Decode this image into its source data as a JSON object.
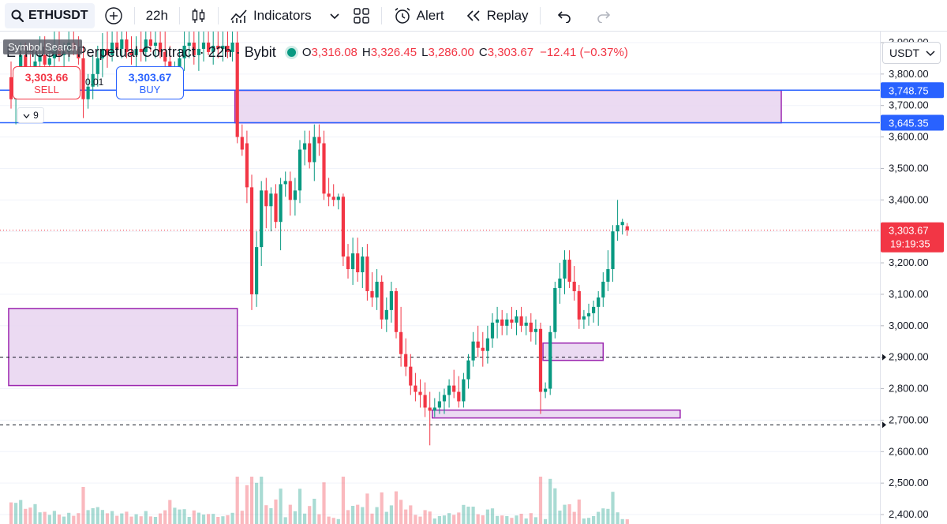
{
  "toolbar": {
    "symbol": "ETHUSDT",
    "interval": "22h",
    "indicators_label": "Indicators",
    "alert_label": "Alert",
    "replay_label": "Replay"
  },
  "tooltip": {
    "symbol_search": "Symbol Search"
  },
  "legend": {
    "title": "ETHUSDT Perpetual Contract · 22h · Bybit",
    "open_key": "O",
    "open": "3,316.08",
    "high_key": "H",
    "high": "3,326.45",
    "low_key": "L",
    "low": "3,286.00",
    "close_key": "C",
    "close": "3,303.67",
    "change": "−12.41 (−0.37%)"
  },
  "trade": {
    "sell_price": "3,303.66",
    "sell_label": "SELL",
    "buy_price": "3,303.67",
    "buy_label": "BUY",
    "spread": "0.01"
  },
  "indicator_toggle": {
    "count": "9"
  },
  "currency": "USDT",
  "colors": {
    "up": "#089981",
    "down": "#f23645",
    "zone_fill": "#e8d4f0",
    "zone_border": "#9c27b0",
    "hline": "#2962ff",
    "grid": "#f0f3fa"
  },
  "axis": {
    "min": 2370,
    "max": 3935,
    "ticks": [
      3900,
      3800,
      3700,
      3600,
      3500,
      3400,
      3300,
      3200,
      3100,
      3000,
      2900,
      2800,
      2700,
      2600,
      2500,
      2400
    ],
    "tick_labels": [
      "3,900.00",
      "3,800.00",
      "3,700.00",
      "3,600.00",
      "3,500.00",
      "3,400.00",
      "3,300.00",
      "3,200.00",
      "3,100.00",
      "3,000.00",
      "2,900.00",
      "2,800.00",
      "2,700.00",
      "2,600.00",
      "2,500.00",
      "2,400.00"
    ],
    "level_labels": [
      {
        "value": 3748.75,
        "text": "3,748.75"
      },
      {
        "value": 3645.35,
        "text": "3,645.35"
      }
    ],
    "last_price": {
      "value": 3303.67,
      "text": "3,303.67",
      "countdown": "19:19:35"
    }
  },
  "chart_data": {
    "type": "candlestick",
    "horizontal_lines": [
      3748.75,
      3645.35
    ],
    "dashed_lines": [
      2900,
      2685
    ],
    "zones": [
      {
        "from_bar": 47,
        "to_bar": 160,
        "low": 3645,
        "high": 3748
      },
      {
        "from_bar": 0,
        "to_bar": 47,
        "low": 2810,
        "high": 3055
      },
      {
        "from_bar": 111,
        "to_bar": 123,
        "low": 2890,
        "high": 2945
      },
      {
        "from_bar": 88,
        "to_bar": 139,
        "low": 2707,
        "high": 2732
      }
    ],
    "candles": [
      [
        3790,
        3840,
        3690,
        3720
      ],
      [
        3720,
        3810,
        3640,
        3780
      ],
      [
        3780,
        3900,
        3740,
        3860
      ],
      [
        3860,
        3900,
        3770,
        3820
      ],
      [
        3820,
        3890,
        3740,
        3780
      ],
      [
        3780,
        3870,
        3720,
        3840
      ],
      [
        3840,
        3920,
        3790,
        3860
      ],
      [
        3860,
        3920,
        3810,
        3830
      ],
      [
        3830,
        3880,
        3790,
        3850
      ],
      [
        3850,
        3935,
        3810,
        3880
      ],
      [
        3880,
        3935,
        3840,
        3860
      ],
      [
        3860,
        3900,
        3810,
        3870
      ],
      [
        3870,
        3935,
        3840,
        3900
      ],
      [
        3900,
        3935,
        3860,
        3880
      ],
      [
        3880,
        3920,
        3830,
        3850
      ],
      [
        3850,
        3890,
        3660,
        3720
      ],
      [
        3720,
        3800,
        3690,
        3760
      ],
      [
        3760,
        3860,
        3720,
        3800
      ],
      [
        3800,
        3890,
        3760,
        3850
      ],
      [
        3850,
        3930,
        3790,
        3880
      ],
      [
        3880,
        3935,
        3820,
        3860
      ],
      [
        3860,
        3935,
        3840,
        3900
      ],
      [
        3900,
        3935,
        3860,
        3880
      ],
      [
        3880,
        3935,
        3850,
        3910
      ],
      [
        3910,
        3935,
        3850,
        3870
      ],
      [
        3870,
        3920,
        3830,
        3860
      ],
      [
        3860,
        3920,
        3820,
        3880
      ],
      [
        3880,
        3935,
        3840,
        3870
      ],
      [
        3870,
        3935,
        3840,
        3910
      ],
      [
        3910,
        3935,
        3870,
        3890
      ],
      [
        3890,
        3935,
        3850,
        3900
      ],
      [
        3900,
        3935,
        3850,
        3870
      ],
      [
        3870,
        3935,
        3800,
        3840
      ],
      [
        3840,
        3890,
        3730,
        3760
      ],
      [
        3760,
        3840,
        3720,
        3810
      ],
      [
        3810,
        3880,
        3760,
        3850
      ],
      [
        3850,
        3935,
        3810,
        3890
      ],
      [
        3890,
        3935,
        3850,
        3900
      ],
      [
        3900,
        3935,
        3830,
        3860
      ],
      [
        3860,
        3935,
        3810,
        3880
      ],
      [
        3880,
        3935,
        3840,
        3900
      ],
      [
        3900,
        3935,
        3860,
        3870
      ],
      [
        3870,
        3935,
        3830,
        3890
      ],
      [
        3890,
        3935,
        3850,
        3880
      ],
      [
        3880,
        3935,
        3840,
        3890
      ],
      [
        3890,
        3935,
        3850,
        3870
      ],
      [
        3870,
        3935,
        3840,
        3900
      ],
      [
        3900,
        3935,
        3580,
        3600
      ],
      [
        3600,
        3640,
        3540,
        3560
      ],
      [
        3580,
        3620,
        3390,
        3440
      ],
      [
        3440,
        3480,
        3050,
        3100
      ],
      [
        3100,
        3300,
        3060,
        3250
      ],
      [
        3250,
        3460,
        3190,
        3430
      ],
      [
        3430,
        3470,
        3310,
        3380
      ],
      [
        3380,
        3440,
        3300,
        3420
      ],
      [
        3420,
        3450,
        3310,
        3330
      ],
      [
        3330,
        3470,
        3240,
        3450
      ],
      [
        3450,
        3490,
        3410,
        3460
      ],
      [
        3460,
        3490,
        3350,
        3400
      ],
      [
        3400,
        3470,
        3350,
        3430
      ],
      [
        3430,
        3590,
        3390,
        3560
      ],
      [
        3560,
        3620,
        3510,
        3580
      ],
      [
        3580,
        3620,
        3500,
        3520
      ],
      [
        3520,
        3640,
        3460,
        3600
      ],
      [
        3600,
        3640,
        3540,
        3580
      ],
      [
        3580,
        3620,
        3400,
        3420
      ],
      [
        3420,
        3470,
        3380,
        3410
      ],
      [
        3410,
        3450,
        3380,
        3400
      ],
      [
        3400,
        3420,
        3370,
        3410
      ],
      [
        3410,
        3420,
        3190,
        3220
      ],
      [
        3220,
        3260,
        3150,
        3180
      ],
      [
        3180,
        3280,
        3130,
        3230
      ],
      [
        3230,
        3280,
        3140,
        3170
      ],
      [
        3170,
        3250,
        3120,
        3220
      ],
      [
        3220,
        3260,
        3080,
        3110
      ],
      [
        3110,
        3170,
        3060,
        3090
      ],
      [
        3090,
        3180,
        3050,
        3140
      ],
      [
        3140,
        3160,
        2990,
        3020
      ],
      [
        3020,
        3090,
        2980,
        3050
      ],
      [
        3050,
        3140,
        3010,
        3110
      ],
      [
        3110,
        3120,
        2960,
        2980
      ],
      [
        2980,
        3060,
        2870,
        2910
      ],
      [
        2910,
        2960,
        2840,
        2870
      ],
      [
        2870,
        2910,
        2780,
        2810
      ],
      [
        2810,
        2850,
        2760,
        2790
      ],
      [
        2790,
        2830,
        2740,
        2780
      ],
      [
        2780,
        2820,
        2710,
        2740
      ],
      [
        2740,
        2790,
        2620,
        2730
      ],
      [
        2730,
        2770,
        2710,
        2740
      ],
      [
        2740,
        2790,
        2720,
        2760
      ],
      [
        2760,
        2800,
        2720,
        2780
      ],
      [
        2780,
        2830,
        2740,
        2810
      ],
      [
        2810,
        2860,
        2770,
        2790
      ],
      [
        2790,
        2840,
        2740,
        2760
      ],
      [
        2760,
        2850,
        2740,
        2830
      ],
      [
        2830,
        2910,
        2800,
        2890
      ],
      [
        2890,
        2980,
        2870,
        2950
      ],
      [
        2950,
        3000,
        2900,
        2930
      ],
      [
        2930,
        2980,
        2870,
        2920
      ],
      [
        2920,
        3000,
        2880,
        2960
      ],
      [
        2960,
        3040,
        2930,
        3010
      ],
      [
        3010,
        3060,
        2960,
        3020
      ],
      [
        3020,
        3050,
        2970,
        3000
      ],
      [
        3000,
        3040,
        2970,
        3020
      ],
      [
        3020,
        3060,
        2990,
        3010
      ],
      [
        3010,
        3050,
        2970,
        3030
      ],
      [
        3030,
        3060,
        2980,
        3000
      ],
      [
        3000,
        3030,
        2970,
        3010
      ],
      [
        3010,
        3040,
        2950,
        2980
      ],
      [
        2980,
        3020,
        2940,
        2990
      ],
      [
        2990,
        3010,
        2720,
        2790
      ],
      [
        2790,
        2820,
        2770,
        2800
      ],
      [
        2800,
        3000,
        2780,
        2980
      ],
      [
        2980,
        3140,
        2960,
        3120
      ],
      [
        3120,
        3200,
        3070,
        3150
      ],
      [
        3150,
        3240,
        3100,
        3210
      ],
      [
        3210,
        3240,
        3120,
        3140
      ],
      [
        3140,
        3190,
        3080,
        3110
      ],
      [
        3110,
        3130,
        2990,
        3020
      ],
      [
        3020,
        3050,
        2990,
        3030
      ],
      [
        3030,
        3070,
        3000,
        3040
      ],
      [
        3040,
        3080,
        3010,
        3060
      ],
      [
        3060,
        3110,
        3000,
        3090
      ],
      [
        3090,
        3170,
        3060,
        3140
      ],
      [
        3140,
        3240,
        3110,
        3180
      ],
      [
        3180,
        3320,
        3140,
        3300
      ],
      [
        3300,
        3400,
        3270,
        3320
      ],
      [
        3320,
        3340,
        3290,
        3330
      ],
      [
        3316.08,
        3326.45,
        3286,
        3303.67
      ]
    ]
  }
}
